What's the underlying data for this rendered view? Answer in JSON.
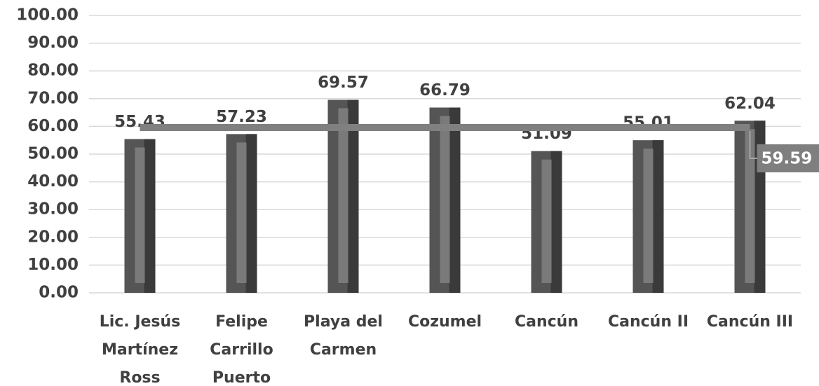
{
  "chart_data": {
    "type": "bar",
    "categories": [
      "Lic. Jesús Martínez Ross",
      "Felipe Carrillo Puerto",
      "Playa del Carmen",
      "Cozumel",
      "Cancún",
      "Cancún II",
      "Cancún III"
    ],
    "values": [
      55.43,
      57.23,
      69.57,
      66.79,
      51.09,
      55.01,
      62.04
    ],
    "color": "#555555",
    "average": 59.59,
    "average_color": "#808080",
    "ylim": [
      0,
      100
    ],
    "yticks": [
      {
        "value": 0,
        "label": "0.00"
      },
      {
        "value": 10,
        "label": "10.00"
      },
      {
        "value": 20,
        "label": "20.00"
      },
      {
        "value": 30,
        "label": "30.00"
      },
      {
        "value": 40,
        "label": "40.00"
      },
      {
        "value": 50,
        "label": "50.00"
      },
      {
        "value": 60,
        "label": "60.00"
      },
      {
        "value": 70,
        "label": "70.00"
      },
      {
        "value": 80,
        "label": "80.00"
      },
      {
        "value": 90,
        "label": "90.00"
      },
      {
        "value": 100,
        "label": "100.00"
      }
    ],
    "grid": true
  }
}
